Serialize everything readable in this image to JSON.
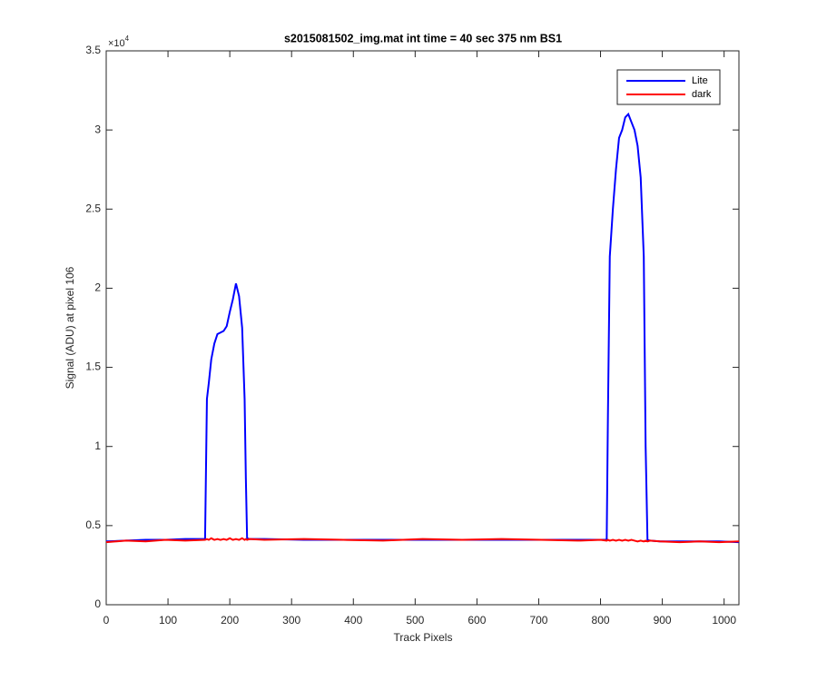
{
  "chart_data": {
    "type": "line",
    "title": "s2015081502_img.mat int time = 40 sec  375 nm BS1",
    "x_label": "Track Pixels",
    "y_label": "Signal (ADU) at pixel 106",
    "y_multiplier": {
      "base": "×10",
      "exponent": "4"
    },
    "xlim": [
      0,
      1024
    ],
    "xticks": [
      0,
      100,
      200,
      300,
      400,
      500,
      600,
      700,
      800,
      900,
      1000
    ],
    "ylim": [
      0,
      3.5
    ],
    "yticks": [
      0,
      0.5,
      1,
      1.5,
      2,
      2.5,
      3,
      3.5
    ],
    "grid": false,
    "legend_position": "upper-right",
    "x": [
      0,
      32,
      64,
      96,
      128,
      160,
      163,
      166,
      170,
      175,
      180,
      185,
      190,
      195,
      200,
      205,
      210,
      215,
      220,
      224,
      226,
      228,
      232,
      256,
      320,
      384,
      448,
      512,
      576,
      640,
      704,
      768,
      800,
      810,
      812,
      815,
      820,
      825,
      830,
      835,
      840,
      845,
      850,
      855,
      860,
      865,
      870,
      873,
      876,
      880,
      896,
      928,
      960,
      992,
      1024
    ],
    "series": [
      {
        "name": "Lite",
        "color": "#0000ff",
        "values": [
          0.4,
          0.405,
          0.41,
          0.41,
          0.415,
          0.415,
          1.3,
          1.4,
          1.55,
          1.65,
          1.71,
          1.72,
          1.73,
          1.76,
          1.85,
          1.93,
          2.03,
          1.95,
          1.75,
          1.3,
          0.8,
          0.42,
          0.415,
          0.415,
          0.41,
          0.41,
          0.41,
          0.41,
          0.41,
          0.41,
          0.41,
          0.41,
          0.41,
          0.41,
          1.2,
          2.2,
          2.5,
          2.75,
          2.95,
          3.0,
          3.08,
          3.1,
          3.05,
          3.0,
          2.9,
          2.7,
          2.2,
          1.0,
          0.41,
          0.405,
          0.4,
          0.4,
          0.4,
          0.4,
          0.395
        ]
      },
      {
        "name": "dark",
        "color": "#ff0000",
        "values": [
          0.395,
          0.405,
          0.4,
          0.41,
          0.405,
          0.41,
          0.415,
          0.41,
          0.42,
          0.41,
          0.415,
          0.41,
          0.415,
          0.41,
          0.42,
          0.41,
          0.415,
          0.41,
          0.42,
          0.41,
          0.415,
          0.41,
          0.415,
          0.41,
          0.415,
          0.41,
          0.405,
          0.415,
          0.41,
          0.415,
          0.41,
          0.405,
          0.41,
          0.405,
          0.41,
          0.405,
          0.41,
          0.405,
          0.41,
          0.405,
          0.41,
          0.405,
          0.41,
          0.405,
          0.4,
          0.405,
          0.4,
          0.405,
          0.4,
          0.405,
          0.4,
          0.395,
          0.4,
          0.395,
          0.4
        ]
      }
    ]
  }
}
